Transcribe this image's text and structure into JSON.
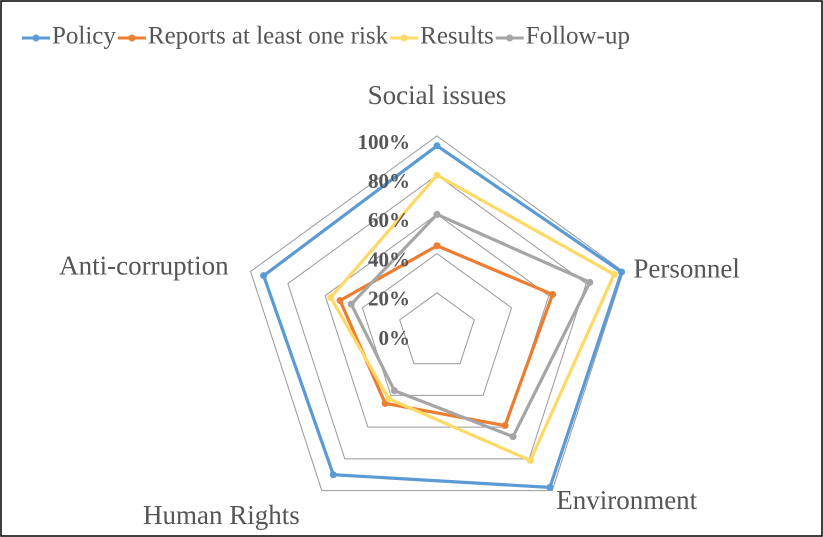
{
  "chart_data": {
    "type": "radar",
    "categories": [
      "Social issues",
      "Personnel",
      "Environment",
      "Human Rights",
      "Anti-corruption"
    ],
    "series": [
      {
        "name": "Policy",
        "color": "#5b9bd5",
        "values": [
          95,
          99,
          98,
          90,
          93
        ]
      },
      {
        "name": "Reports at least one risk",
        "color": "#ed7d31",
        "values": [
          44,
          62,
          59,
          45,
          52
        ]
      },
      {
        "name": "Results",
        "color": "#ffd966",
        "values": [
          80,
          95,
          81,
          42,
          57
        ]
      },
      {
        "name": "Follow-up",
        "color": "#a5a5a5",
        "values": [
          60,
          82,
          66,
          37,
          46
        ]
      }
    ],
    "ylim": [
      0,
      100
    ],
    "yticks": [
      {
        "value": 0,
        "label": "0%"
      },
      {
        "value": 20,
        "label": "20%"
      },
      {
        "value": 40,
        "label": "40%"
      },
      {
        "value": 60,
        "label": "60%"
      },
      {
        "value": 80,
        "label": "80%"
      },
      {
        "value": 100,
        "label": "100%"
      }
    ],
    "grid": true,
    "legend": "top"
  }
}
